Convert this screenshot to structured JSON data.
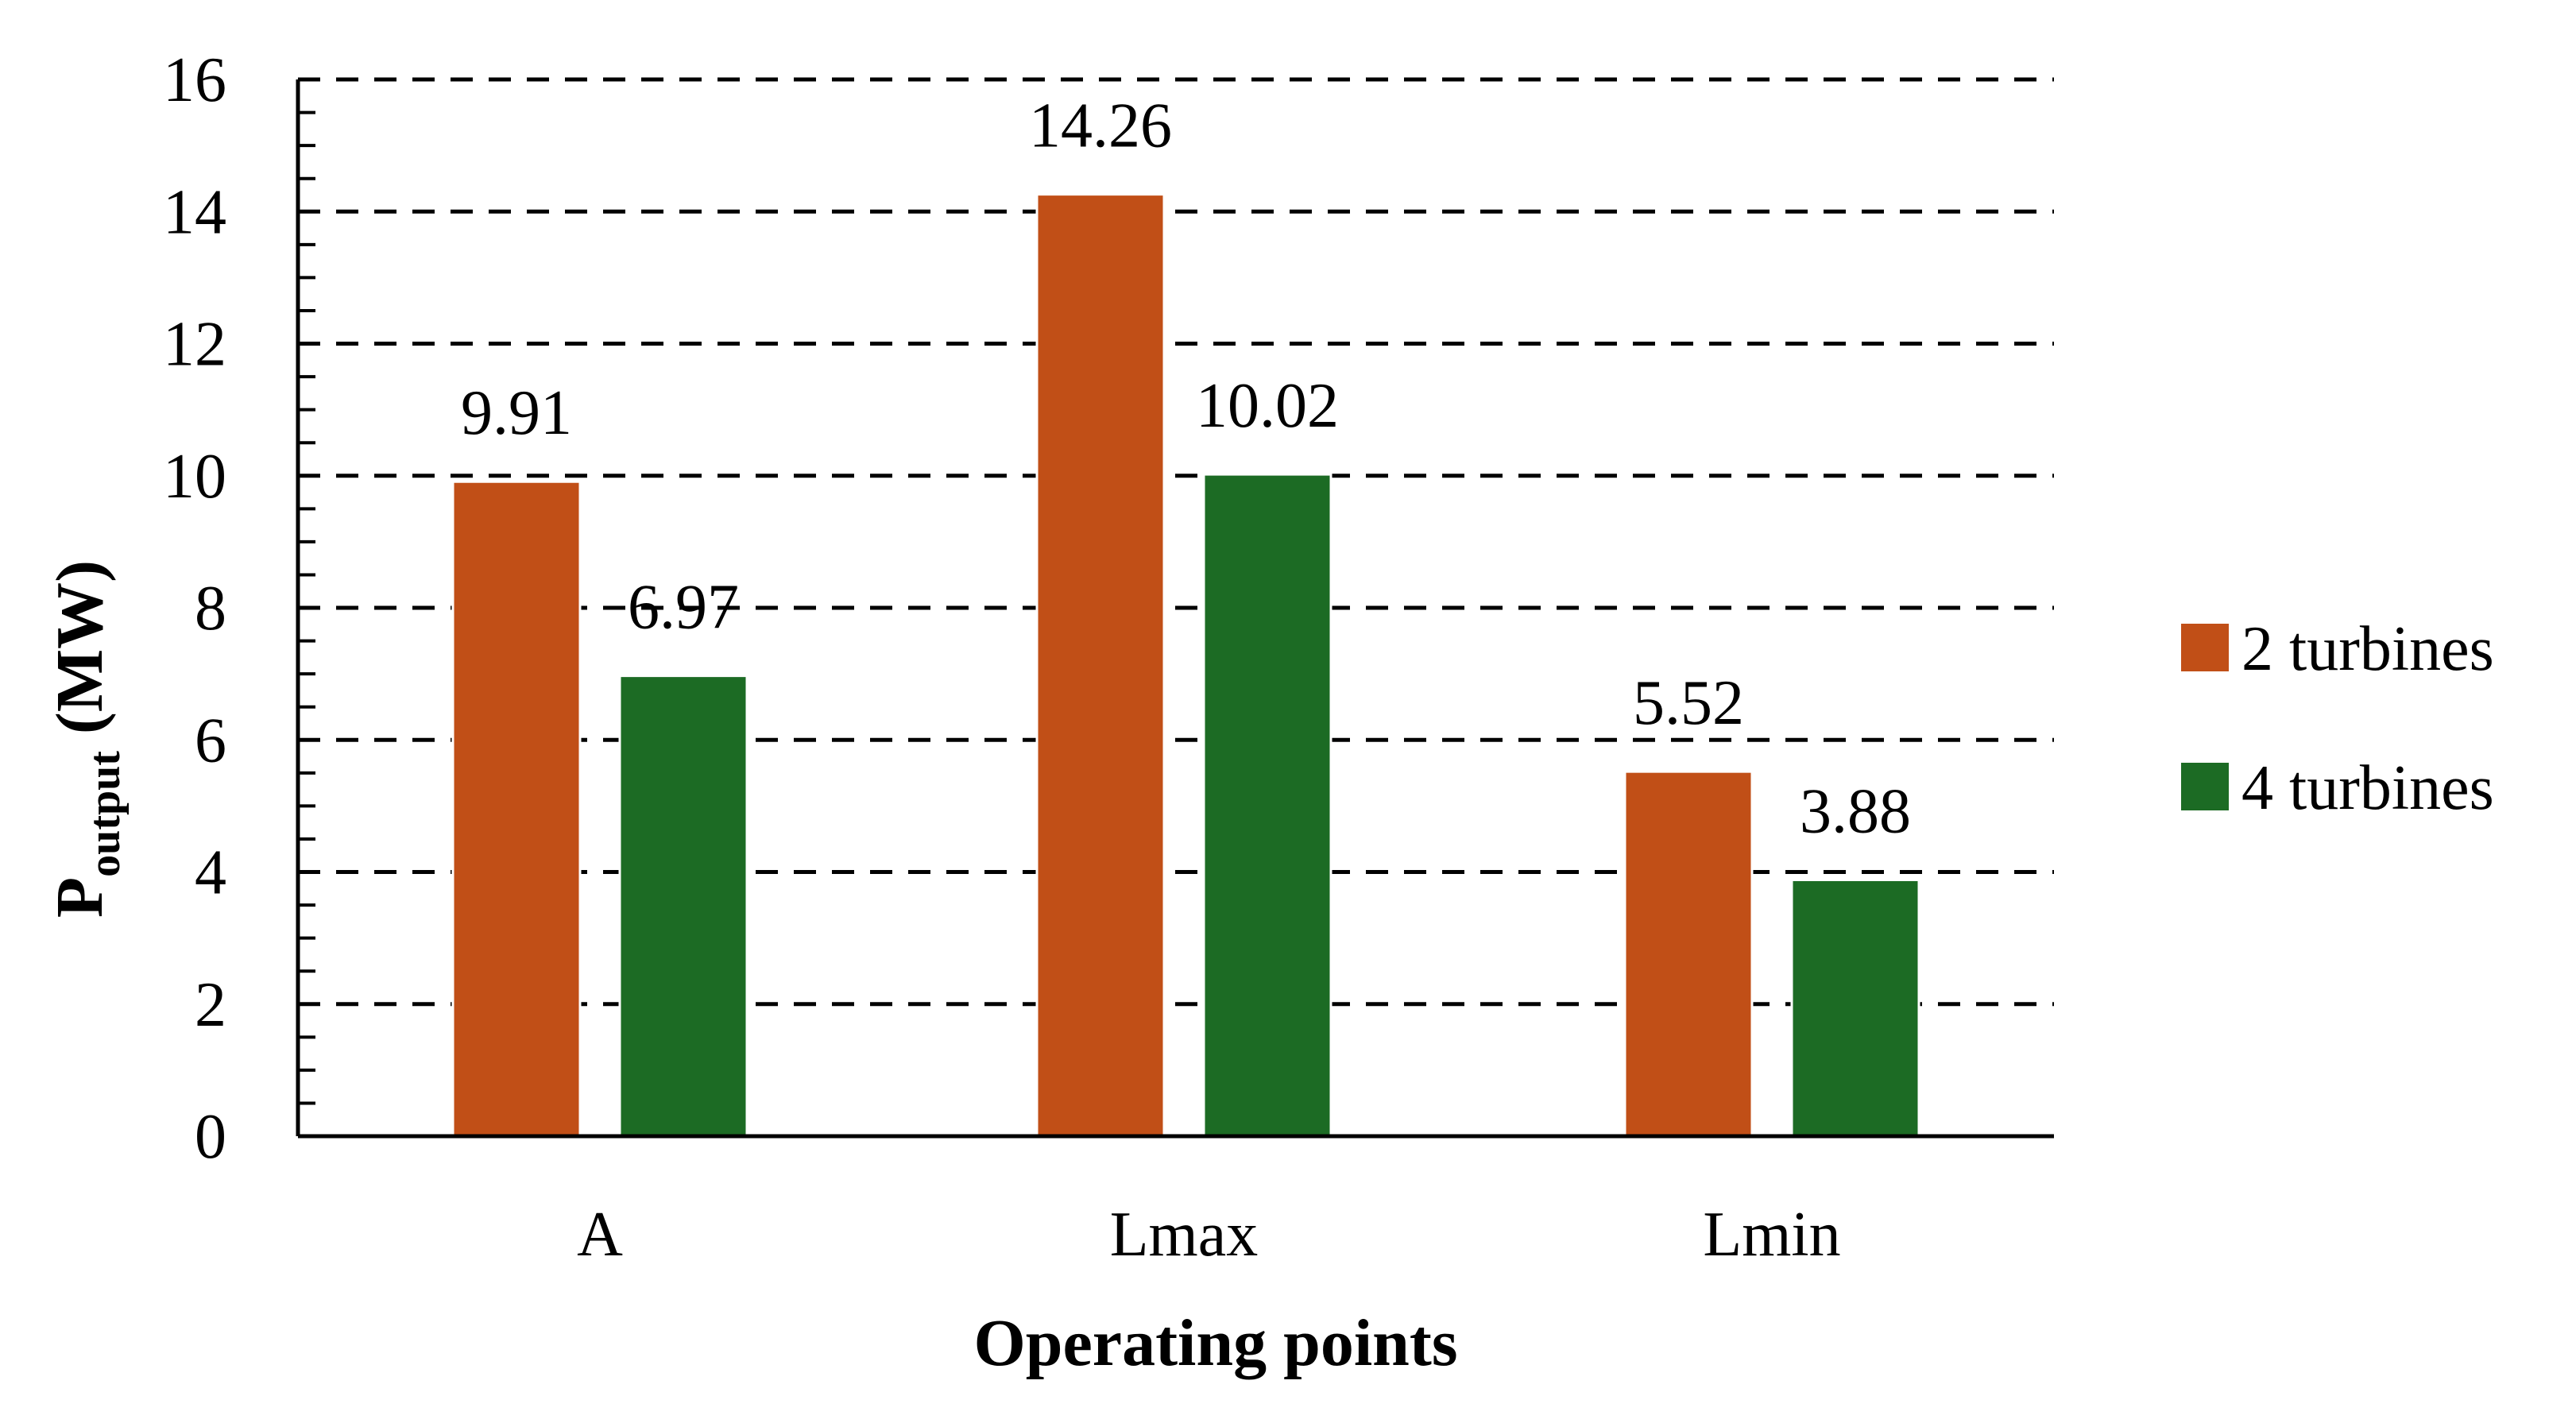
{
  "chart_data": {
    "type": "bar",
    "title": "",
    "xlabel": "Operating points",
    "ylabel": {
      "main": "P",
      "subscript": "output",
      "suffix": " (MW)"
    },
    "ylim": [
      0,
      16
    ],
    "yticks": [
      0,
      2,
      4,
      6,
      8,
      10,
      12,
      14,
      16
    ],
    "grid": true,
    "legend_position": "right",
    "categories": [
      "A",
      "Lmax",
      "Lmin"
    ],
    "series": [
      {
        "name": "2 turbines",
        "color": "#c14f17",
        "values": [
          9.91,
          14.26,
          5.52
        ],
        "labels": [
          "9.91",
          "14.26",
          "5.52"
        ]
      },
      {
        "name": "4 turbines",
        "color": "#1c6b24",
        "values": [
          6.97,
          10.02,
          3.88
        ],
        "labels": [
          "6.97",
          "10.02",
          "3.88"
        ]
      }
    ]
  }
}
